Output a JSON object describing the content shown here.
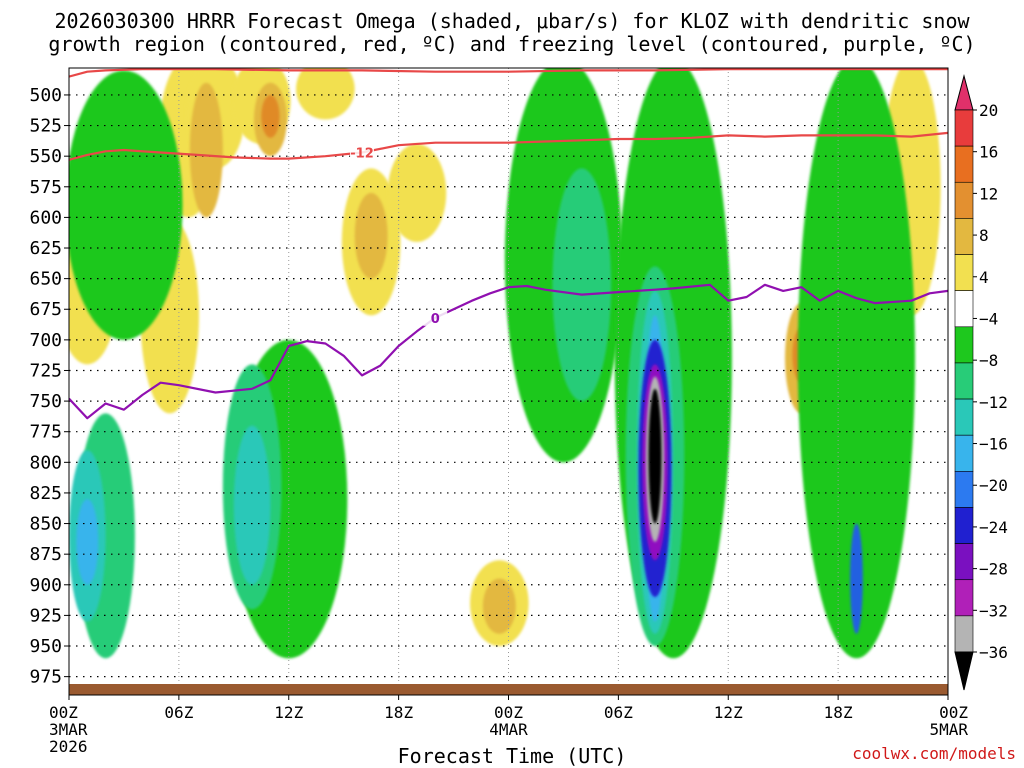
{
  "header": {
    "title_line1": "2026030300 HRRR Forecast Omega (shaded, μbar/s) for KLOZ with dendritic snow",
    "title_line2": "growth region (contoured, red, ºC) and freezing level (contoured, purple, ºC)"
  },
  "footer": {
    "credit": "coolwx.com/models"
  },
  "chart_data": {
    "type": "heatmap",
    "title": "2026030300 HRRR Forecast Omega (shaded, μbar/s) for KLOZ with dendritic snow growth region (contoured, red, ºC) and freezing level (contoured, purple, ºC)",
    "xlabel": "Forecast Time (UTC)",
    "ylabel": "",
    "x_range_hours": [
      0,
      48
    ],
    "y_range_mb": [
      478,
      990
    ],
    "y_ticks": [
      500,
      525,
      550,
      575,
      600,
      625,
      650,
      675,
      700,
      725,
      750,
      775,
      800,
      825,
      850,
      875,
      900,
      925,
      950,
      975
    ],
    "x_ticks": [
      {
        "hour": 0,
        "label": "00Z",
        "date": "3MAR",
        "year": "2026"
      },
      {
        "hour": 6,
        "label": "06Z",
        "date": "",
        "year": ""
      },
      {
        "hour": 12,
        "label": "12Z",
        "date": "",
        "year": ""
      },
      {
        "hour": 18,
        "label": "18Z",
        "date": "",
        "year": ""
      },
      {
        "hour": 24,
        "label": "00Z",
        "date": "4MAR",
        "year": ""
      },
      {
        "hour": 30,
        "label": "06Z",
        "date": "",
        "year": ""
      },
      {
        "hour": 36,
        "label": "12Z",
        "date": "",
        "year": ""
      },
      {
        "hour": 42,
        "label": "18Z",
        "date": "",
        "year": ""
      },
      {
        "hour": 48,
        "label": "00Z",
        "date": "5MAR",
        "year": ""
      }
    ],
    "grid": true,
    "colorbar": {
      "labels": [
        "20",
        "16",
        "12",
        "8",
        "4",
        "−4",
        "−8",
        "−12",
        "−16",
        "−20",
        "−24",
        "−28",
        "−32",
        "−36"
      ],
      "bounds": [
        20,
        16,
        12,
        8,
        4,
        -4,
        -8,
        -12,
        -16,
        -20,
        -24,
        -28,
        -32,
        -36
      ],
      "colors": [
        "#e0306a",
        "#e83c3c",
        "#e86f20",
        "#e39030",
        "#e3b840",
        "#f2e050",
        "#ffffff",
        "#1ec81e",
        "#28cc78",
        "#2ac8b8",
        "#38b4ec",
        "#2c7af0",
        "#2020d0",
        "#7a10c0",
        "#b020b8",
        "#b4b4b4",
        "#000000"
      ]
    },
    "colors": {
      "positive_4_8": "#f2e050",
      "positive_8_12": "#e3b840",
      "positive_12_16": "#e08a28",
      "positive_16_20": "#e86020",
      "negative_4_8": "#1ec81e",
      "negative_8_12": "#28cc78",
      "negative_12_16": "#2ac8b8",
      "negative_16_20": "#38b4ec",
      "negative_20_24": "#2060e0",
      "negative_24_28": "#2020d0",
      "negative_28_32": "#9010c0",
      "negative_32_36": "#b4b4b4",
      "negative_lt_36": "#000000",
      "dgz_contour": "#e84848",
      "freezing_contour": "#9010b0",
      "ground": "#9a5a30"
    },
    "contours": [
      {
        "name": "dendritic growth region top",
        "label": "-12",
        "units": "ºC",
        "points": [
          [
            0,
            553
          ],
          [
            1,
            549
          ],
          [
            2,
            546
          ],
          [
            3,
            545
          ],
          [
            5,
            547
          ],
          [
            7,
            549
          ],
          [
            9,
            551
          ],
          [
            11,
            552
          ],
          [
            12,
            552
          ],
          [
            14,
            550
          ],
          [
            16,
            547
          ],
          [
            18,
            541
          ],
          [
            20,
            539
          ],
          [
            22,
            539
          ],
          [
            24,
            539
          ],
          [
            26,
            538
          ],
          [
            28,
            537
          ],
          [
            30,
            536
          ],
          [
            32,
            536
          ],
          [
            34,
            535
          ],
          [
            36,
            533
          ],
          [
            38,
            534
          ],
          [
            40,
            533
          ],
          [
            42,
            533
          ],
          [
            44,
            533
          ],
          [
            46,
            534
          ],
          [
            48,
            531
          ]
        ]
      },
      {
        "name": "dendritic growth region base",
        "label": "-12",
        "units": "ºC",
        "points": [
          [
            0,
            485
          ],
          [
            1,
            481
          ],
          [
            2,
            480
          ],
          [
            4,
            479
          ],
          [
            8,
            479
          ],
          [
            12,
            480
          ],
          [
            16,
            480
          ],
          [
            20,
            481
          ],
          [
            24,
            481
          ],
          [
            28,
            480
          ],
          [
            32,
            480
          ],
          [
            36,
            479
          ],
          [
            40,
            479
          ],
          [
            44,
            479
          ],
          [
            48,
            479
          ]
        ]
      },
      {
        "name": "freezing level",
        "label": "0",
        "units": "ºC",
        "points": [
          [
            0,
            748
          ],
          [
            1,
            764
          ],
          [
            2,
            752
          ],
          [
            3,
            757
          ],
          [
            4,
            745
          ],
          [
            5,
            735
          ],
          [
            6,
            737
          ],
          [
            8,
            743
          ],
          [
            10,
            740
          ],
          [
            11,
            733
          ],
          [
            12,
            705
          ],
          [
            13,
            701
          ],
          [
            14,
            703
          ],
          [
            15,
            713
          ],
          [
            16,
            729
          ],
          [
            17,
            721
          ],
          [
            18,
            705
          ],
          [
            19,
            693
          ],
          [
            20,
            682
          ],
          [
            21,
            675
          ],
          [
            22,
            668
          ],
          [
            23,
            662
          ],
          [
            24,
            657
          ],
          [
            25,
            656
          ],
          [
            26,
            659
          ],
          [
            28,
            663
          ],
          [
            30,
            661
          ],
          [
            32,
            659
          ],
          [
            33,
            658
          ],
          [
            35,
            655
          ],
          [
            36,
            668
          ],
          [
            37,
            665
          ],
          [
            38,
            655
          ],
          [
            39,
            660
          ],
          [
            40,
            657
          ],
          [
            41,
            668
          ],
          [
            42,
            660
          ],
          [
            43,
            666
          ],
          [
            44,
            670
          ],
          [
            46,
            668
          ],
          [
            47,
            662
          ],
          [
            48,
            660
          ]
        ]
      }
    ],
    "shaded_regions": [
      {
        "band": "4 to 8",
        "hour": 1,
        "mb": [
          610,
          720
        ]
      },
      {
        "band": "4 to 8",
        "hour": 4.5,
        "mb": [
          545,
          620
        ]
      },
      {
        "band": "4 to 8",
        "hour": 5.5,
        "mb": [
          600,
          760
        ]
      },
      {
        "band": "4 to 8",
        "hour": 6.5,
        "mb": [
          470,
          600
        ]
      },
      {
        "band": "4 to 8",
        "hour": 8,
        "mb": [
          470,
          560
        ]
      },
      {
        "band": "4 to 8",
        "hour": 10.5,
        "mb": [
          470,
          540
        ]
      },
      {
        "band": "4 to 8",
        "hour": 14,
        "mb": [
          470,
          520
        ]
      },
      {
        "band": "4 to 8",
        "hour": 16.5,
        "mb": [
          560,
          680
        ]
      },
      {
        "band": "4 to 8",
        "hour": 19,
        "mb": [
          540,
          620
        ]
      },
      {
        "band": "4 to 8",
        "hour": 23.5,
        "mb": [
          880,
          950
        ]
      },
      {
        "band": "4 to 8",
        "hour": 46,
        "mb": [
          470,
          680
        ]
      },
      {
        "band": "8 to 12",
        "hour": 7.5,
        "mb": [
          490,
          600
        ]
      },
      {
        "band": "8 to 12",
        "hour": 11,
        "mb": [
          490,
          550
        ]
      },
      {
        "band": "8 to 12",
        "hour": 16.5,
        "mb": [
          580,
          650
        ]
      },
      {
        "band": "8 to 12",
        "hour": 23.5,
        "mb": [
          895,
          940
        ]
      },
      {
        "band": "8 to 12",
        "hour": 40,
        "mb": [
          670,
          760
        ]
      },
      {
        "band": "12 to 16",
        "hour": 11,
        "mb": [
          500,
          535
        ]
      },
      {
        "band": "12 to 16",
        "hour": 40,
        "mb": [
          690,
          735
        ]
      },
      {
        "band": "-4 to -8",
        "hour": 3,
        "mb": [
          480,
          700
        ]
      },
      {
        "band": "-4 to -8",
        "hour": 12,
        "mb": [
          700,
          960
        ]
      },
      {
        "band": "-4 to -8",
        "hour": 27,
        "mb": [
          470,
          800
        ]
      },
      {
        "band": "-4 to -8",
        "hour": 33,
        "mb": [
          470,
          960
        ]
      },
      {
        "band": "-4 to -8",
        "hour": 43,
        "mb": [
          470,
          960
        ]
      },
      {
        "band": "-8 to -12",
        "hour": 2,
        "mb": [
          760,
          960
        ]
      },
      {
        "band": "-8 to -12",
        "hour": 10,
        "mb": [
          720,
          920
        ]
      },
      {
        "band": "-8 to -12",
        "hour": 28,
        "mb": [
          560,
          750
        ]
      },
      {
        "band": "-8 to -12",
        "hour": 32,
        "mb": [
          640,
          950
        ]
      },
      {
        "band": "-12 to -16",
        "hour": 1,
        "mb": [
          790,
          930
        ]
      },
      {
        "band": "-12 to -16",
        "hour": 10,
        "mb": [
          770,
          900
        ]
      },
      {
        "band": "-12 to -16",
        "hour": 32,
        "mb": [
          660,
          940
        ]
      },
      {
        "band": "-16 to -20",
        "hour": 1,
        "mb": [
          830,
          900
        ]
      },
      {
        "band": "-16 to -20",
        "hour": 32,
        "mb": [
          680,
          930
        ]
      },
      {
        "band": "-20 to -24",
        "hour": 43,
        "mb": [
          850,
          940
        ]
      },
      {
        "band": "-24 to -28",
        "hour": 32,
        "mb": [
          700,
          910
        ]
      },
      {
        "band": "-28 to -32",
        "hour": 32,
        "mb": [
          720,
          880
        ]
      },
      {
        "band": "-32 to -36",
        "hour": 32,
        "mb": [
          730,
          865
        ]
      },
      {
        "band": "< -36",
        "hour": 32,
        "mb": [
          740,
          850
        ]
      }
    ]
  }
}
